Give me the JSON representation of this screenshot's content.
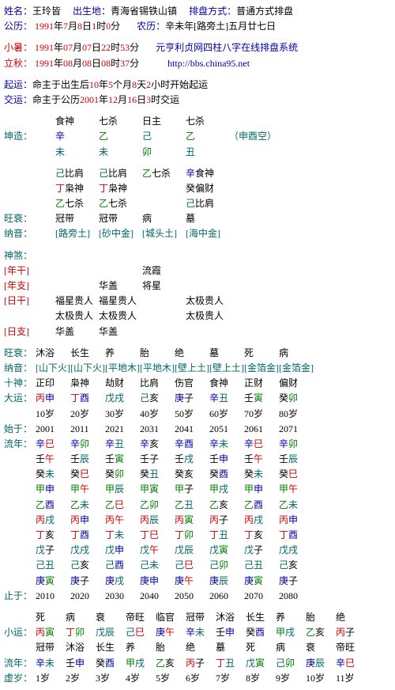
{
  "header": {
    "name_lbl": "姓名：",
    "name": "王玲皆",
    "birthplace_lbl": "出生地：",
    "birthplace": "青海省锡铁山镇",
    "method_lbl": "排盘方式：",
    "method": "普通方式排盘",
    "gongli_lbl": "公历：",
    "gongli_y": "1991",
    "gongli_m": "7",
    "gongli_d": "8",
    "gongli_h": "1",
    "gongli_min": "0",
    "nongli_lbl": "农历：",
    "nongli": "辛未年[路旁土]五月廿七日",
    "xiaoshu_lbl": "小暑：",
    "xiaoshu_y": "1991",
    "xiaoshu_m": "07",
    "xiaoshu_d": "07",
    "xiaoshu_h": "22",
    "xiaoshu_min": "53",
    "liqiu_lbl": "立秋：",
    "liqiu_y": "1991",
    "liqiu_m": "08",
    "liqiu_d": "08",
    "liqiu_h": "08",
    "liqiu_min": "37",
    "system": "元亨利贞网四柱八字在线排盘系统",
    "url": "http://bbs.china95.net",
    "qiyun_lbl": "起运：",
    "qiyun_p1": "命主于出生后",
    "qiyun_y": "10",
    "qiyun_m": "5",
    "qiyun_d": "8",
    "qiyun_h": "2",
    "qiyun_p2": "小时开始起运",
    "jiaoyun_lbl": "交运：",
    "jiaoyun_p1": "命主于公历",
    "jiaoyun_y": "2001",
    "jiaoyun_m": "12",
    "jiaoyun_d": "16",
    "jiaoyun_h": "3",
    "jiaoyun_p2": "时交运"
  },
  "pillars": {
    "top": [
      "食神",
      "七杀",
      "日主",
      "七杀"
    ],
    "kunzao": "坤造：",
    "gan": [
      "辛",
      "乙",
      "己",
      "乙"
    ],
    "zhi": [
      "未",
      "未",
      "卯",
      "丑"
    ],
    "kong": "（申酉空）",
    "hidden": [
      [
        "己比肩",
        "丁枭神",
        "乙七杀"
      ],
      [
        "己比肩",
        "丁枭神",
        "乙七杀"
      ],
      [
        "乙七杀"
      ],
      [
        "辛食神",
        "癸偏财",
        "己比肩"
      ]
    ],
    "wangshuai_lbl": "旺衰：",
    "wangshuai": [
      "冠带",
      "冠带",
      "病",
      "墓"
    ],
    "nayin": [
      "[路旁土]",
      "[砂中金]",
      "[城头土]",
      "[海中金]"
    ]
  },
  "shensha": {
    "lbl": "神煞：",
    "rows": [
      {
        "l": "[年干]",
        "v": [
          "",
          "",
          "流霞",
          ""
        ]
      },
      {
        "l": "[年支]",
        "v": [
          "",
          "华盖",
          "将星",
          ""
        ]
      },
      {
        "l": "[日干]",
        "v": [
          "福星贵人",
          "福星贵人",
          "",
          "太极贵人"
        ]
      },
      {
        "l": "",
        "v": [
          "太极贵人",
          "太极贵人",
          "",
          "太极贵人"
        ]
      },
      {
        "l": "[日支]",
        "v": [
          "华盖",
          "华盖",
          "",
          ""
        ]
      }
    ]
  },
  "dayun": {
    "wangshuai_lbl": "旺衰：",
    "wangshuai": [
      "沐浴",
      "长生",
      "养",
      "胎",
      "绝",
      "墓",
      "死",
      "病"
    ],
    "nayin_lbl": "纳音：",
    "nayin": [
      "[山下火]",
      "[山下火]",
      "[平地木]",
      "[平地木]",
      "[壁上土]",
      "[壁上土]",
      "[金箔金]",
      "[金箔金]"
    ],
    "shishen_lbl": "十神：",
    "shishen": [
      "正印",
      "枭神",
      "劫财",
      "比肩",
      "伤官",
      "食神",
      "正财",
      "偏财"
    ],
    "dayun_lbl": "大运：",
    "dayun": [
      "丙申",
      "丁酉",
      "戊戌",
      "己亥",
      "庚子",
      "辛丑",
      "壬寅",
      "癸卯"
    ],
    "ages": [
      "10岁",
      "20岁",
      "30岁",
      "40岁",
      "50岁",
      "60岁",
      "70岁",
      "80岁"
    ],
    "shiyu_lbl": "始于：",
    "shiyu": [
      "2001",
      "2011",
      "2021",
      "2031",
      "2041",
      "2051",
      "2061",
      "2071"
    ],
    "liunian_lbl": "流年：",
    "liunian": [
      [
        "辛巳",
        "辛卯",
        "辛丑",
        "辛亥",
        "辛酉",
        "辛未",
        "辛巳",
        "辛卯"
      ],
      [
        "壬午",
        "壬辰",
        "壬寅",
        "壬子",
        "壬戌",
        "壬申",
        "壬午",
        "壬辰"
      ],
      [
        "癸未",
        "癸巳",
        "癸卯",
        "癸丑",
        "癸亥",
        "癸酉",
        "癸未",
        "癸巳"
      ],
      [
        "甲申",
        "甲午",
        "甲辰",
        "甲寅",
        "甲子",
        "甲戌",
        "甲申",
        "甲午"
      ],
      [
        "乙酉",
        "乙未",
        "乙巳",
        "乙卯",
        "乙丑",
        "乙亥",
        "乙酉",
        "乙未"
      ],
      [
        "丙戌",
        "丙申",
        "丙午",
        "丙辰",
        "丙寅",
        "丙子",
        "丙戌",
        "丙申"
      ],
      [
        "丁亥",
        "丁酉",
        "丁未",
        "丁巳",
        "丁卯",
        "丁丑",
        "丁亥",
        "丁酉"
      ],
      [
        "戊子",
        "戊戌",
        "戊申",
        "戊午",
        "戊辰",
        "戊寅",
        "戊子",
        "戊戌"
      ],
      [
        "己丑",
        "己亥",
        "己酉",
        "己未",
        "己巳",
        "己卯",
        "己丑",
        "己亥"
      ],
      [
        "庚寅",
        "庚子",
        "庚戌",
        "庚申",
        "庚午",
        "庚辰",
        "庚寅",
        "庚子"
      ]
    ],
    "zhiyu_lbl": "止于：",
    "zhiyu": [
      "2010",
      "2020",
      "2030",
      "2040",
      "2050",
      "2060",
      "2070",
      "2080"
    ]
  },
  "xiaoyun": {
    "top_row": [
      "死",
      "病",
      "衰",
      "帝旺",
      "临官",
      "冠带",
      "沐浴",
      "长生",
      "养",
      "胎",
      "绝"
    ],
    "lbl": "小运：",
    "main": [
      "丙寅",
      "丁卯",
      "戊辰",
      "己巳",
      "庚午",
      "辛未",
      "壬申",
      "癸酉",
      "甲戌",
      "乙亥",
      "丙子"
    ],
    "sub": [
      "冠带",
      "沐浴",
      "长生",
      "养",
      "胎",
      "绝",
      "墓",
      "死",
      "病",
      "衰",
      "帝旺"
    ],
    "liunian_lbl": "流年：",
    "liunian": [
      "辛未",
      "壬申",
      "癸酉",
      "甲戌",
      "乙亥",
      "丙子",
      "丁丑",
      "戊寅",
      "己卯",
      "庚辰",
      "辛巳"
    ],
    "xusui_lbl": "虚岁：",
    "xusui": [
      "1岁",
      "2岁",
      "3岁",
      "4岁",
      "5岁",
      "6岁",
      "7岁",
      "8岁",
      "9岁",
      "10岁",
      "11岁"
    ]
  }
}
